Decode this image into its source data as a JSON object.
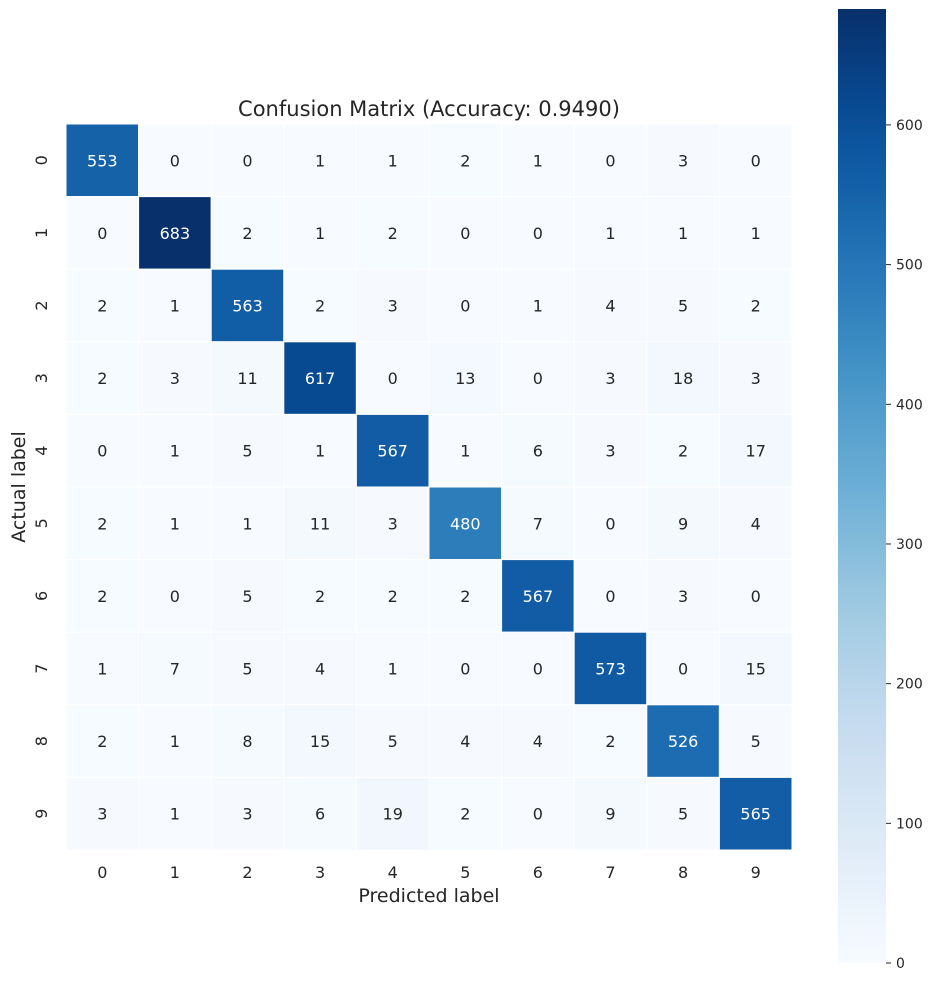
{
  "chart_data": {
    "type": "heatmap",
    "title": "Confusion Matrix (Accuracy: 0.9490)",
    "xlabel": "Predicted label",
    "ylabel": "Actual label",
    "x_categories": [
      "0",
      "1",
      "2",
      "3",
      "4",
      "5",
      "6",
      "7",
      "8",
      "9"
    ],
    "y_categories": [
      "0",
      "1",
      "2",
      "3",
      "4",
      "5",
      "6",
      "7",
      "8",
      "9"
    ],
    "values": [
      [
        553,
        0,
        0,
        1,
        1,
        2,
        1,
        0,
        3,
        0
      ],
      [
        0,
        683,
        2,
        1,
        2,
        0,
        0,
        1,
        1,
        1
      ],
      [
        2,
        1,
        563,
        2,
        3,
        0,
        1,
        4,
        5,
        2
      ],
      [
        2,
        3,
        11,
        617,
        0,
        13,
        0,
        3,
        18,
        3
      ],
      [
        0,
        1,
        5,
        1,
        567,
        1,
        6,
        3,
        2,
        17
      ],
      [
        2,
        1,
        1,
        11,
        3,
        480,
        7,
        0,
        9,
        4
      ],
      [
        2,
        0,
        5,
        2,
        2,
        2,
        567,
        0,
        3,
        0
      ],
      [
        1,
        7,
        5,
        4,
        1,
        0,
        0,
        573,
        0,
        15
      ],
      [
        2,
        1,
        8,
        15,
        5,
        4,
        4,
        2,
        526,
        5
      ],
      [
        3,
        1,
        3,
        6,
        19,
        2,
        0,
        9,
        5,
        565
      ]
    ],
    "colormap": "Blues",
    "colorbar": {
      "min": 0,
      "max": 683,
      "ticks": [
        0,
        100,
        200,
        300,
        400,
        500,
        600
      ],
      "position": "right"
    },
    "grid": false,
    "cell_borders": "white"
  }
}
